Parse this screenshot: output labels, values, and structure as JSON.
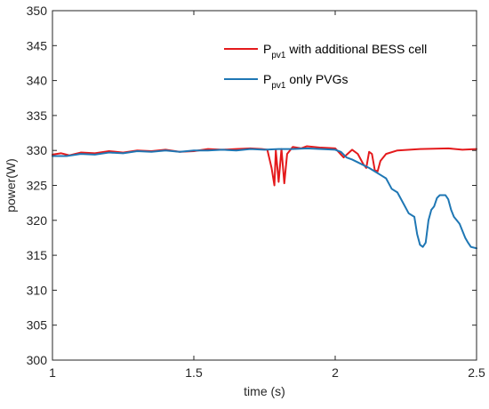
{
  "chart_data": {
    "type": "line",
    "xlabel": "time (s)",
    "ylabel": "power(W)",
    "xlim": [
      1,
      2.5
    ],
    "ylim": [
      300,
      350
    ],
    "xticks": [
      1,
      1.5,
      2,
      2.5
    ],
    "xtick_labels": [
      "1",
      "1.5",
      "2",
      "2.5"
    ],
    "yticks": [
      300,
      305,
      310,
      315,
      320,
      325,
      330,
      335,
      340,
      345,
      350
    ],
    "ytick_labels": [
      "300",
      "305",
      "310",
      "315",
      "320",
      "325",
      "330",
      "335",
      "340",
      "345",
      "350"
    ],
    "grid": false,
    "legend_position": "top-right",
    "series": [
      {
        "name_main": "P",
        "name_sub": "pv1",
        "name_rest": " with additional BESS cell",
        "color": "#e41a1c",
        "points": [
          [
            1.0,
            329.4
          ],
          [
            1.03,
            329.6
          ],
          [
            1.06,
            329.3
          ],
          [
            1.1,
            329.7
          ],
          [
            1.15,
            329.6
          ],
          [
            1.2,
            329.9
          ],
          [
            1.25,
            329.7
          ],
          [
            1.3,
            330.0
          ],
          [
            1.35,
            329.9
          ],
          [
            1.4,
            330.1
          ],
          [
            1.45,
            329.8
          ],
          [
            1.5,
            329.9
          ],
          [
            1.55,
            330.2
          ],
          [
            1.6,
            330.1
          ],
          [
            1.65,
            330.2
          ],
          [
            1.7,
            330.3
          ],
          [
            1.74,
            330.2
          ],
          [
            1.76,
            330.1
          ],
          [
            1.775,
            327.5
          ],
          [
            1.785,
            325.0
          ],
          [
            1.79,
            330.0
          ],
          [
            1.8,
            325.5
          ],
          [
            1.81,
            330.2
          ],
          [
            1.82,
            325.3
          ],
          [
            1.83,
            329.5
          ],
          [
            1.85,
            330.5
          ],
          [
            1.88,
            330.3
          ],
          [
            1.9,
            330.6
          ],
          [
            1.95,
            330.4
          ],
          [
            2.0,
            330.3
          ],
          [
            2.03,
            329.0
          ],
          [
            2.06,
            330.1
          ],
          [
            2.08,
            329.5
          ],
          [
            2.1,
            328.0
          ],
          [
            2.11,
            327.5
          ],
          [
            2.12,
            329.8
          ],
          [
            2.13,
            329.5
          ],
          [
            2.14,
            327.2
          ],
          [
            2.15,
            327.0
          ],
          [
            2.16,
            328.5
          ],
          [
            2.18,
            329.5
          ],
          [
            2.22,
            330.0
          ],
          [
            2.3,
            330.2
          ],
          [
            2.4,
            330.3
          ],
          [
            2.45,
            330.1
          ],
          [
            2.5,
            330.2
          ]
        ]
      },
      {
        "name_main": "P",
        "name_sub": "pv1",
        "name_rest": " only PVGs",
        "color": "#1f77b4",
        "points": [
          [
            1.0,
            329.2
          ],
          [
            1.05,
            329.2
          ],
          [
            1.1,
            329.5
          ],
          [
            1.15,
            329.4
          ],
          [
            1.2,
            329.7
          ],
          [
            1.25,
            329.6
          ],
          [
            1.3,
            329.9
          ],
          [
            1.35,
            329.8
          ],
          [
            1.4,
            330.0
          ],
          [
            1.45,
            329.8
          ],
          [
            1.5,
            330.0
          ],
          [
            1.55,
            330.0
          ],
          [
            1.6,
            330.1
          ],
          [
            1.65,
            330.0
          ],
          [
            1.7,
            330.2
          ],
          [
            1.75,
            330.1
          ],
          [
            1.8,
            330.2
          ],
          [
            1.85,
            330.2
          ],
          [
            1.9,
            330.3
          ],
          [
            1.95,
            330.2
          ],
          [
            2.0,
            330.1
          ],
          [
            2.02,
            329.8
          ],
          [
            2.04,
            329.0
          ],
          [
            2.06,
            328.7
          ],
          [
            2.08,
            328.3
          ],
          [
            2.1,
            327.9
          ],
          [
            2.12,
            327.5
          ],
          [
            2.14,
            327.0
          ],
          [
            2.16,
            326.5
          ],
          [
            2.18,
            326.0
          ],
          [
            2.2,
            324.5
          ],
          [
            2.22,
            324.0
          ],
          [
            2.24,
            322.5
          ],
          [
            2.26,
            321.0
          ],
          [
            2.28,
            320.5
          ],
          [
            2.29,
            318.0
          ],
          [
            2.3,
            316.5
          ],
          [
            2.31,
            316.2
          ],
          [
            2.32,
            316.8
          ],
          [
            2.33,
            320.0
          ],
          [
            2.34,
            321.5
          ],
          [
            2.35,
            322.0
          ],
          [
            2.36,
            323.2
          ],
          [
            2.37,
            323.6
          ],
          [
            2.39,
            323.6
          ],
          [
            2.4,
            323.0
          ],
          [
            2.41,
            321.5
          ],
          [
            2.42,
            320.5
          ],
          [
            2.43,
            320.0
          ],
          [
            2.44,
            319.5
          ],
          [
            2.45,
            318.5
          ],
          [
            2.46,
            317.5
          ],
          [
            2.47,
            316.8
          ],
          [
            2.48,
            316.2
          ],
          [
            2.5,
            316.0
          ]
        ]
      }
    ]
  }
}
